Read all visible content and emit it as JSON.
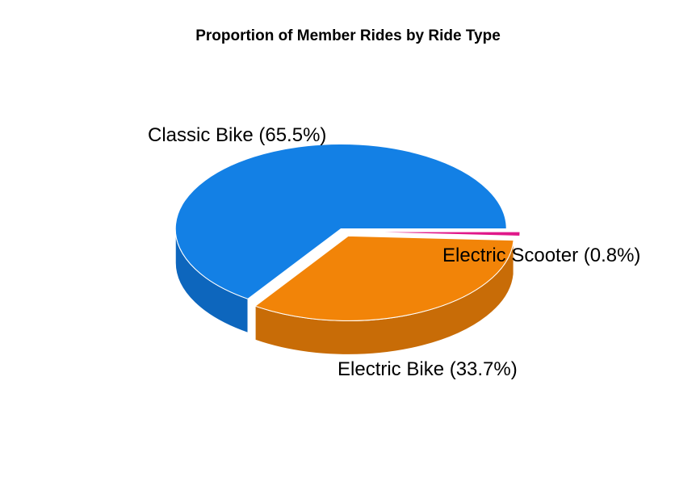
{
  "chart_data": {
    "type": "pie",
    "style": "3d-exploded",
    "title": "Proportion of Member Rides by Ride Type",
    "slices": [
      {
        "name": "Classic Bike",
        "label": "Classic Bike (65.5%)",
        "value": 65.5,
        "color": "#1380E5",
        "side_color": "#0D66BD"
      },
      {
        "name": "Electric Bike",
        "label": "Electric Bike (33.7%)",
        "value": 33.7,
        "color": "#F28408",
        "side_color": "#C86C07"
      },
      {
        "name": "Electric Scooter",
        "label": "Electric Scooter (0.8%)",
        "value": 0.8,
        "color": "#E0188A",
        "side_color": "#B01070"
      }
    ]
  }
}
